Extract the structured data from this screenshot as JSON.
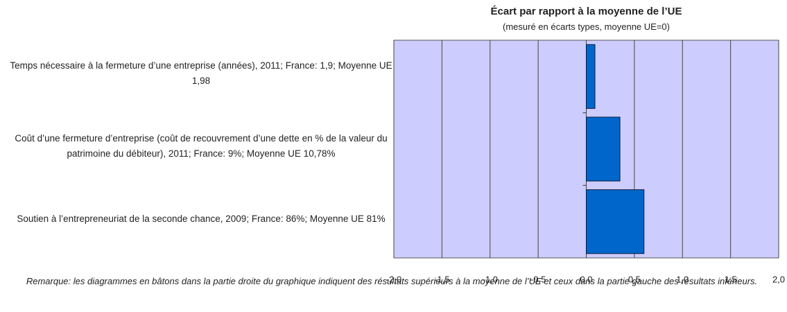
{
  "chart_data": {
    "type": "hbar",
    "title": "Écart par rapport à la moyenne de l’UE",
    "subtitle": "(mesuré en écarts types, moyenne UE=0)",
    "categories": [
      "Temps nécessaire à la fermeture d’une entreprise (années), 2011; France: 1,9; Moyenne UE 1,98",
      "Coût d’une fermeture d’entreprise (coût de recouvrement d’une dette en % de la valeur du patrimoine du débiteur), 2011; France: 9%; Moyenne UE 10,78%",
      "Soutien à l’entrepreneuriat de la seconde chance, 2009; France: 86%; Moyenne UE 81%"
    ],
    "values": [
      0.09,
      0.35,
      0.6
    ],
    "color": "#0066cc",
    "background": "#ccccff",
    "xlim": [
      -2,
      2
    ],
    "xticks": [
      {
        "value": -2,
        "label": "-2,0"
      },
      {
        "value": -1.5,
        "label": "-1,5"
      },
      {
        "value": -1,
        "label": "-1,0"
      },
      {
        "value": -0.5,
        "label": "-0,5"
      },
      {
        "value": 0,
        "label": "0,0"
      },
      {
        "value": 0.5,
        "label": "0,5"
      },
      {
        "value": 1,
        "label": "1,0"
      },
      {
        "value": 1.5,
        "label": "1,5"
      },
      {
        "value": 2,
        "label": "2,0"
      }
    ],
    "grid": true,
    "note": "Remarque: les diagrammes en bâtons dans la partie droite du graphique indiquent des résultats supérieurs à la moyenne de l’UE et ceux dans la partie gauche des résultats inférieurs."
  }
}
